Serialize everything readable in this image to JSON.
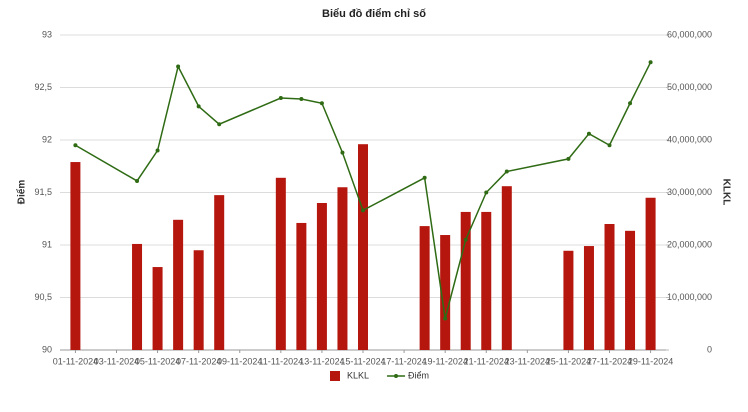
{
  "chart_data": {
    "type": "combo",
    "title": "Biểu đồ điểm chỉ số",
    "y_label": "Điểm",
    "y2_label": "KLKL",
    "x": [
      "01-11-2024",
      "04-11-2024",
      "05-11-2024",
      "06-11-2024",
      "07-11-2024",
      "08-11-2024",
      "11-11-2024",
      "12-11-2024",
      "13-11-2024",
      "14-11-2024",
      "15-11-2024",
      "18-11-2024",
      "19-11-2024",
      "20-11-2024",
      "21-11-2024",
      "22-11-2024",
      "25-11-2024",
      "26-11-2024",
      "27-11-2024",
      "28-11-2024",
      "29-11-2024"
    ],
    "xlim": [
      "01-11-2024",
      "29-11-2024"
    ],
    "xticks": [
      "01-11-2024",
      "03-11-2024",
      "05-11-2024",
      "07-11-2024",
      "09-11-2024",
      "11-11-2024",
      "13-11-2024",
      "15-11-2024",
      "17-11-2024",
      "19-11-2024",
      "21-11-2024",
      "23-11-2024",
      "25-11-2024",
      "27-11-2024",
      "29-11-2024"
    ],
    "series": [
      {
        "name": "KLKL",
        "type": "bar",
        "axis": "y2",
        "color": "#b5170f",
        "values": [
          35800000,
          20200000,
          15800000,
          24800000,
          19000000,
          29500000,
          32800000,
          24200000,
          28000000,
          31000000,
          39200000,
          23600000,
          21900000,
          26300000,
          26300000,
          31200000,
          18900000,
          19800000,
          24000000,
          22700000,
          29000000
        ]
      },
      {
        "name": "Điểm",
        "type": "line",
        "color": "#2f6b14",
        "values": [
          91.95,
          91.61,
          91.9,
          92.7,
          92.32,
          92.15,
          92.4,
          92.39,
          92.35,
          91.88,
          91.33,
          91.64,
          90.3,
          91.05,
          91.5,
          91.7,
          91.82,
          92.06,
          91.95,
          92.35,
          92.74
        ]
      }
    ],
    "ylim": [
      90,
      93
    ],
    "yticks": [
      90,
      {
        "value": 90.5,
        "label": "90,5"
      },
      91,
      {
        "value": 91.5,
        "label": "91,5"
      },
      92,
      {
        "value": 92.5,
        "label": "92,5"
      },
      93
    ],
    "y2lim": [
      0,
      60000000
    ],
    "y2ticks": [
      0,
      {
        "value": 10000000,
        "label": "10,000,000"
      },
      {
        "value": 20000000,
        "label": "20,000,000"
      },
      {
        "value": 30000000,
        "label": "30,000,000"
      },
      {
        "value": 40000000,
        "label": "40,000,000"
      },
      {
        "value": 50000000,
        "label": "50,000,000"
      },
      {
        "value": 60000000,
        "label": "60,000,000"
      }
    ],
    "grid": true,
    "legend": "bottom"
  }
}
